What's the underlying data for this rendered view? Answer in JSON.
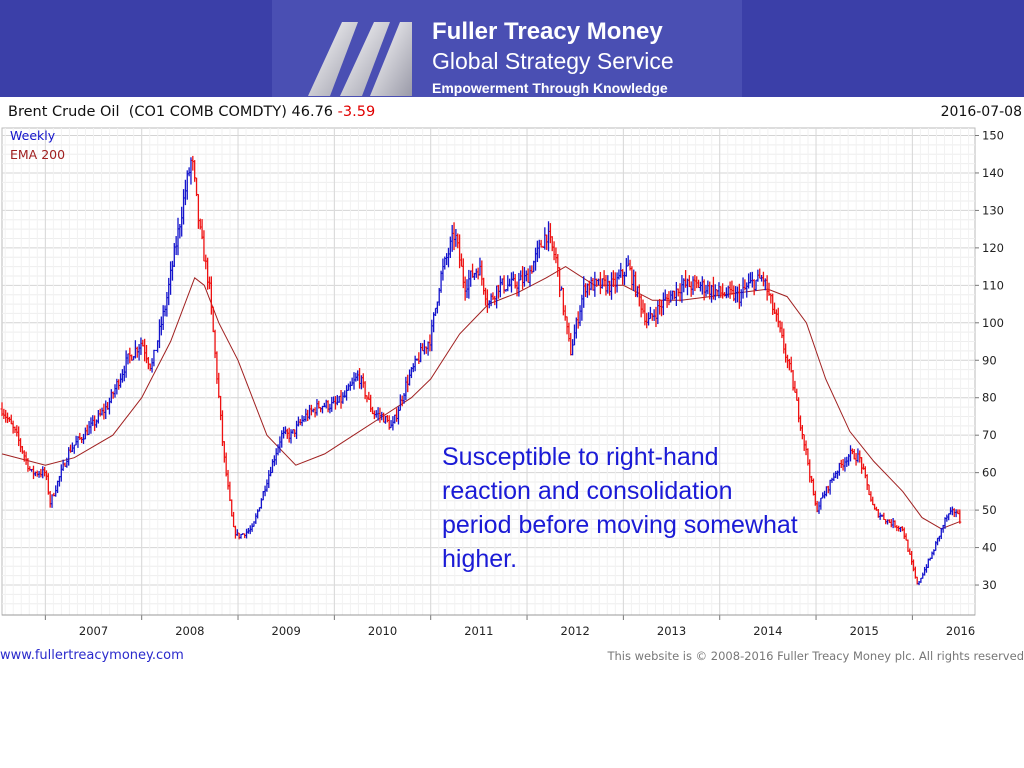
{
  "header": {
    "brand_name": "Fuller Treacy Money",
    "brand_subtitle": "Global Strategy Service",
    "brand_tagline": "Empowerment Through Knowledge"
  },
  "chart_header": {
    "title": "Brent Crude Oil  (CO1 COMB COMDTY) 46.76",
    "change": "-3.59",
    "date": "2016-07-08"
  },
  "legend": {
    "primary": "Weekly",
    "secondary": "EMA 200"
  },
  "annotation": "Susceptible to right-hand reaction and consolidation period before moving somewhat higher.",
  "footer": {
    "url": "www.fullertreacymoney.com",
    "copyright": "This website is © 2008-2016 Fuller Treacy Money plc. All rights reserved"
  },
  "colors": {
    "up": "#1414cc",
    "down": "#ee1111",
    "ema": "#a02020",
    "banner": "#3b3fa8",
    "annotation": "#1a1ad6"
  },
  "chart_data": {
    "type": "line",
    "title": "Brent Crude Oil  (CO1 COMB COMDTY)",
    "xlabel": "",
    "ylabel": "",
    "ylim": [
      22,
      152
    ],
    "xlim": [
      2006.55,
      2016.65
    ],
    "y_ticks": [
      30,
      40,
      50,
      60,
      70,
      80,
      90,
      100,
      110,
      120,
      130,
      140,
      150
    ],
    "x_ticks": [
      "2007",
      "2008",
      "2009",
      "2010",
      "2011",
      "2012",
      "2013",
      "2014",
      "2015",
      "2016"
    ],
    "grid": true,
    "legend_position": "top-left",
    "series": [
      {
        "name": "Weekly",
        "x": [
          2006.55,
          2006.7,
          2006.85,
          2007.0,
          2007.05,
          2007.25,
          2007.5,
          2007.65,
          2007.85,
          2008.0,
          2008.1,
          2008.25,
          2008.45,
          2008.52,
          2008.6,
          2008.7,
          2008.75,
          2008.85,
          2008.95,
          2009.0,
          2009.15,
          2009.3,
          2009.45,
          2009.55,
          2009.7,
          2009.85,
          2010.0,
          2010.1,
          2010.25,
          2010.4,
          2010.5,
          2010.6,
          2010.75,
          2010.9,
          2011.0,
          2011.1,
          2011.25,
          2011.35,
          2011.5,
          2011.6,
          2011.7,
          2011.85,
          2012.0,
          2012.2,
          2012.3,
          2012.45,
          2012.6,
          2012.75,
          2012.9,
          2013.05,
          2013.25,
          2013.4,
          2013.6,
          2013.8,
          2014.0,
          2014.2,
          2014.3,
          2014.45,
          2014.6,
          2014.75,
          2014.9,
          2015.0,
          2015.1,
          2015.2,
          2015.35,
          2015.45,
          2015.6,
          2015.75,
          2015.9,
          2016.0,
          2016.05,
          2016.2,
          2016.35,
          2016.45,
          2016.5
        ],
        "values": [
          77,
          70,
          60,
          60,
          52,
          66,
          73,
          78,
          90,
          95,
          88,
          105,
          135,
          144,
          125,
          110,
          95,
          65,
          45,
          43,
          45,
          58,
          70,
          70,
          75,
          78,
          78,
          80,
          86,
          76,
          75,
          72,
          84,
          92,
          96,
          112,
          124,
          110,
          115,
          105,
          110,
          110,
          112,
          124,
          117,
          92,
          110,
          110,
          110,
          115,
          100,
          105,
          110,
          110,
          108,
          107,
          110,
          112,
          100,
          85,
          65,
          50,
          55,
          60,
          65,
          64,
          50,
          47,
          45,
          35,
          30,
          38,
          48,
          50,
          46.76
        ]
      },
      {
        "name": "EMA 200",
        "x": [
          2006.55,
          2007.0,
          2007.3,
          2007.7,
          2008.0,
          2008.3,
          2008.55,
          2008.65,
          2008.8,
          2009.0,
          2009.3,
          2009.6,
          2009.9,
          2010.2,
          2010.5,
          2010.8,
          2011.0,
          2011.3,
          2011.6,
          2011.9,
          2012.2,
          2012.4,
          2012.7,
          2013.0,
          2013.3,
          2013.6,
          2013.9,
          2014.2,
          2014.5,
          2014.7,
          2014.9,
          2015.1,
          2015.35,
          2015.6,
          2015.9,
          2016.1,
          2016.3,
          2016.5
        ],
        "values": [
          65,
          62,
          64,
          70,
          80,
          95,
          112,
          110,
          100,
          90,
          70,
          62,
          65,
          70,
          75,
          80,
          85,
          97,
          105,
          108,
          112,
          115,
          110,
          110,
          106,
          106,
          107,
          108,
          109,
          107,
          100,
          85,
          71,
          63,
          55,
          48,
          45,
          47
        ]
      }
    ]
  }
}
